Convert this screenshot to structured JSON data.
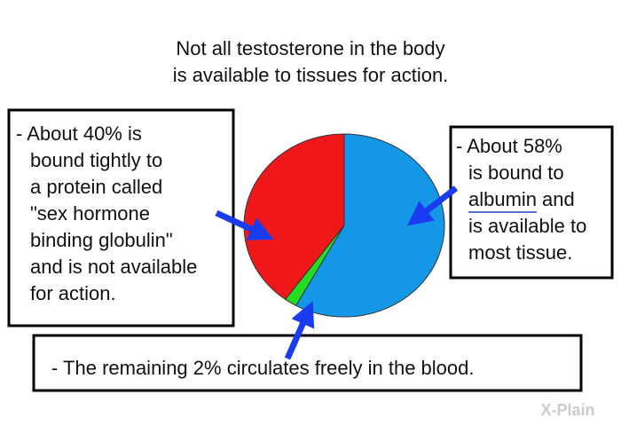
{
  "chart_data": {
    "type": "pie",
    "title": [
      "Not all testosterone in the body",
      "is available to tissues for action."
    ],
    "values": [
      58,
      2,
      40
    ],
    "colors": [
      "#1497e6",
      "#22dd22",
      "#f0171b"
    ],
    "annotations": [
      {
        "lines": [
          "- About 40% is",
          "bound tightly to",
          "a protein called",
          "\"sex hormone",
          "binding globulin\"",
          "and is not available",
          "for action."
        ]
      },
      {
        "lines": [
          "- About 58%",
          "is bound to",
          [
            "albumin",
            "and"
          ],
          "is available to",
          "most tissue."
        ]
      },
      {
        "lines": [
          "- The remaining 2% circulates freely in the blood."
        ]
      }
    ],
    "logo": "X-Plain"
  }
}
